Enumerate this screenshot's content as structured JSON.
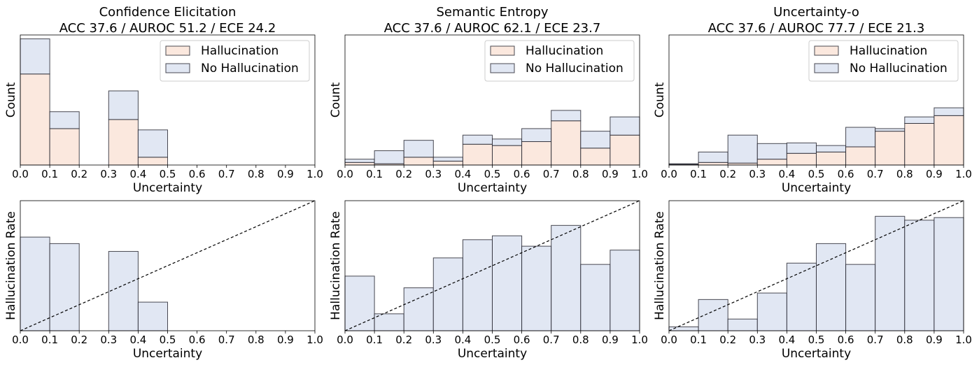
{
  "colors": {
    "hallucination": "#fbe8de",
    "no_hallucination": "#e1e7f3",
    "bar_edge": "#1e1e28",
    "diagonal": "#000000"
  },
  "chart_data": [
    {
      "type": "bar",
      "subtype": "stacked-histogram",
      "title": "Confidence Elicitation",
      "subtitle": "ACC 37.6 / AUROC 51.2 / ECE 24.2",
      "xlabel": "Uncertainty",
      "ylabel": "Count",
      "xlim": [
        0,
        1
      ],
      "ylim": [
        0,
        1
      ],
      "y_ticks_shown": false,
      "bin_edges": [
        0,
        0.1,
        0.2,
        0.3,
        0.4,
        0.5,
        0.6,
        0.7,
        0.8,
        0.9,
        1.0
      ],
      "x_tick_labels": [
        "0.0",
        "0.1",
        "0.2",
        "0.3",
        "0.4",
        "0.5",
        "0.6",
        "0.7",
        "0.8",
        "0.9",
        "1.0"
      ],
      "series": [
        {
          "name": "Hallucination",
          "values": [
            0.7,
            0.28,
            0,
            0.35,
            0.06,
            0,
            0,
            0,
            0,
            0
          ]
        },
        {
          "name": "No Hallucination",
          "values": [
            0.27,
            0.13,
            0,
            0.22,
            0.21,
            0,
            0,
            0,
            0,
            0
          ]
        }
      ],
      "legend_position": "top-right"
    },
    {
      "type": "bar",
      "subtype": "stacked-histogram",
      "title": "Semantic Entropy",
      "subtitle": "ACC 37.6 / AUROC 62.1 / ECE 23.7",
      "xlabel": "Uncertainty",
      "ylabel": "Count",
      "xlim": [
        0,
        1
      ],
      "ylim": [
        0,
        1
      ],
      "y_ticks_shown": false,
      "bin_edges": [
        0,
        0.1,
        0.2,
        0.3,
        0.4,
        0.5,
        0.6,
        0.7,
        0.8,
        0.9,
        1.0
      ],
      "x_tick_labels": [
        "0.0",
        "0.1",
        "0.2",
        "0.3",
        "0.4",
        "0.5",
        "0.6",
        "0.7",
        "0.8",
        "0.9",
        "1.0"
      ],
      "series": [
        {
          "name": "Hallucination",
          "values": [
            0.02,
            0.01,
            0.06,
            0.03,
            0.16,
            0.15,
            0.18,
            0.34,
            0.13,
            0.23
          ]
        },
        {
          "name": "No Hallucination",
          "values": [
            0.025,
            0.1,
            0.13,
            0.03,
            0.07,
            0.05,
            0.1,
            0.08,
            0.13,
            0.14
          ]
        }
      ],
      "legend_position": "top-right"
    },
    {
      "type": "bar",
      "subtype": "stacked-histogram",
      "title": "Uncertainty-o",
      "subtitle": "ACC 37.6 / AUROC 77.7 / ECE 21.3",
      "xlabel": "Uncertainty",
      "ylabel": "Count",
      "xlim": [
        0,
        1
      ],
      "ylim": [
        0,
        1
      ],
      "y_ticks_shown": false,
      "bin_edges": [
        0,
        0.1,
        0.2,
        0.3,
        0.4,
        0.5,
        0.6,
        0.7,
        0.8,
        0.9,
        1.0
      ],
      "x_tick_labels": [
        "0.0",
        "0.1",
        "0.2",
        "0.3",
        "0.4",
        "0.5",
        "0.6",
        "0.7",
        "0.8",
        "0.9",
        "1.0"
      ],
      "series": [
        {
          "name": "Hallucination",
          "values": [
            0.005,
            0.02,
            0.015,
            0.045,
            0.09,
            0.1,
            0.14,
            0.26,
            0.32,
            0.38
          ]
        },
        {
          "name": "No Hallucination",
          "values": [
            0.005,
            0.08,
            0.215,
            0.12,
            0.08,
            0.05,
            0.15,
            0.02,
            0.05,
            0.06
          ]
        }
      ],
      "legend_position": "top-right"
    },
    {
      "type": "bar",
      "subtype": "calibration-histogram",
      "xlabel": "Uncertainty",
      "ylabel": "Hallucination Rate",
      "xlim": [
        0,
        1
      ],
      "ylim": [
        0,
        1
      ],
      "y_ticks_shown": false,
      "bin_edges": [
        0,
        0.1,
        0.2,
        0.3,
        0.4,
        0.5,
        0.6,
        0.7,
        0.8,
        0.9,
        1.0
      ],
      "x_tick_labels": [
        "0.0",
        "0.1",
        "0.2",
        "0.3",
        "0.4",
        "0.5",
        "0.6",
        "0.7",
        "0.8",
        "0.9",
        "1.0"
      ],
      "values": [
        0.72,
        0.67,
        null,
        0.61,
        0.22,
        null,
        null,
        null,
        null,
        null
      ],
      "reference_line": {
        "from": [
          0,
          0
        ],
        "to": [
          1,
          1
        ],
        "style": "dashed"
      }
    },
    {
      "type": "bar",
      "subtype": "calibration-histogram",
      "xlabel": "Uncertainty",
      "ylabel": "Hallucination Rate",
      "xlim": [
        0,
        1
      ],
      "ylim": [
        0,
        1
      ],
      "y_ticks_shown": false,
      "bin_edges": [
        0,
        0.1,
        0.2,
        0.3,
        0.4,
        0.5,
        0.6,
        0.7,
        0.8,
        0.9,
        1.0
      ],
      "x_tick_labels": [
        "0.0",
        "0.1",
        "0.2",
        "0.3",
        "0.4",
        "0.5",
        "0.6",
        "0.7",
        "0.8",
        "0.9",
        "1.0"
      ],
      "values": [
        0.42,
        0.13,
        0.33,
        0.56,
        0.7,
        0.73,
        0.65,
        0.81,
        0.51,
        0.62
      ],
      "reference_line": {
        "from": [
          0,
          0
        ],
        "to": [
          1,
          1
        ],
        "style": "dashed"
      }
    },
    {
      "type": "bar",
      "subtype": "calibration-histogram",
      "xlabel": "Uncertainty",
      "ylabel": "Hallucination Rate",
      "xlim": [
        0,
        1
      ],
      "ylim": [
        0,
        1
      ],
      "y_ticks_shown": false,
      "bin_edges": [
        0,
        0.1,
        0.2,
        0.3,
        0.4,
        0.5,
        0.6,
        0.7,
        0.8,
        0.9,
        1.0
      ],
      "x_tick_labels": [
        "0.0",
        "0.1",
        "0.2",
        "0.3",
        "0.4",
        "0.5",
        "0.6",
        "0.7",
        "0.8",
        "0.9",
        "1.0"
      ],
      "values": [
        0.03,
        0.24,
        0.09,
        0.29,
        0.52,
        0.67,
        0.51,
        0.88,
        0.85,
        0.87
      ],
      "reference_line": {
        "from": [
          0,
          0
        ],
        "to": [
          1,
          1
        ],
        "style": "dashed"
      }
    }
  ]
}
